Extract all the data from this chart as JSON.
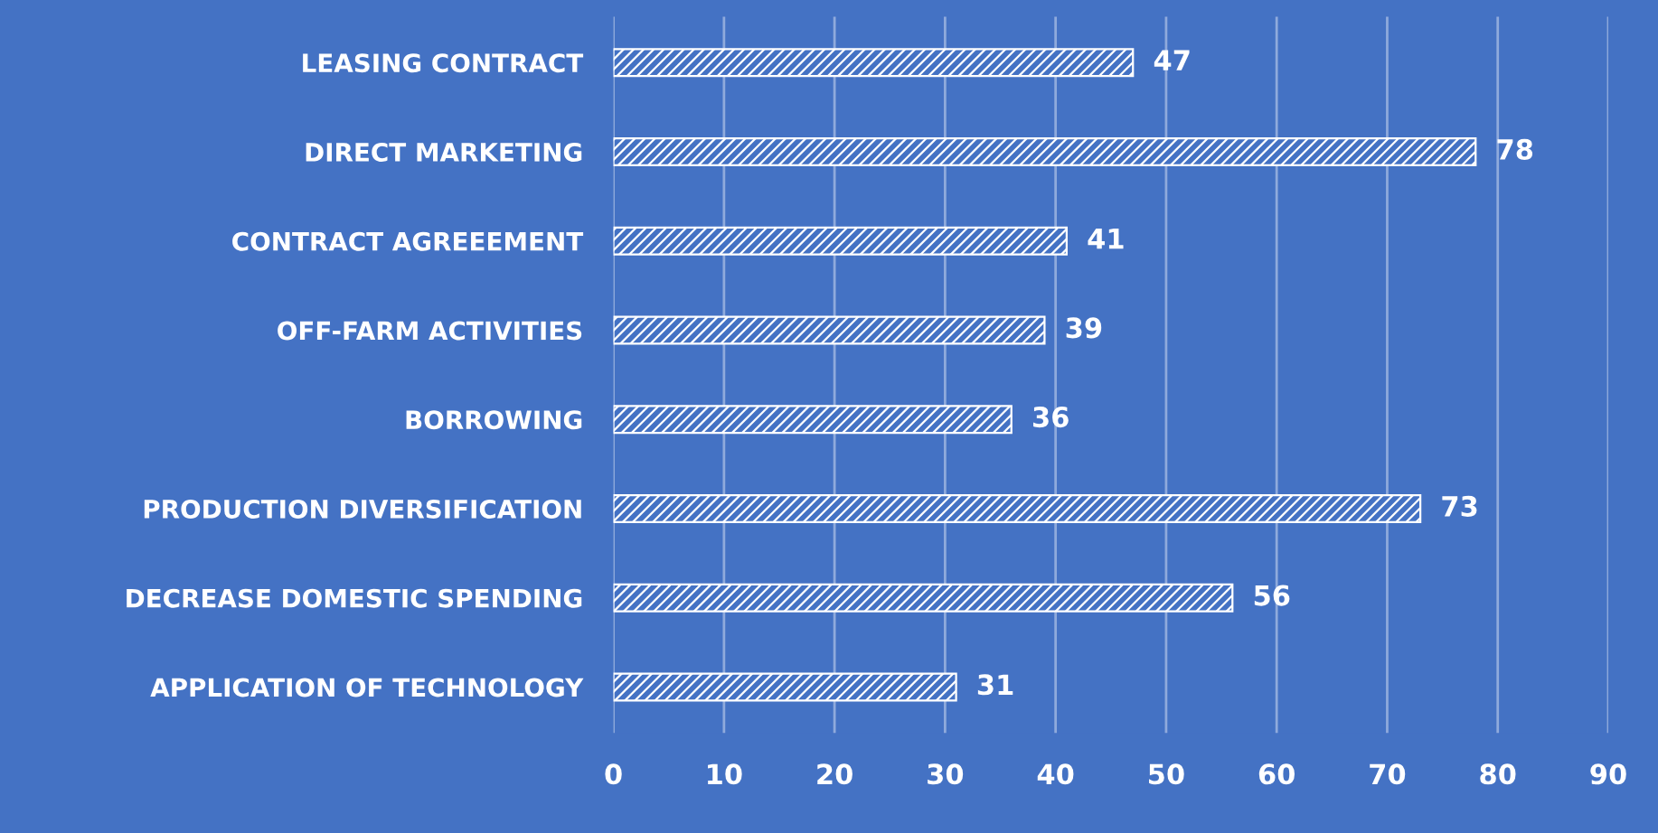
{
  "chart_data": {
    "type": "bar",
    "orientation": "horizontal",
    "categories": [
      "LEASING CONTRACT",
      "DIRECT MARKETING",
      "CONTRACT AGREEEMENT",
      "OFF-FARM ACTIVITIES",
      "BORROWING",
      "PRODUCTION DIVERSIFICATION",
      "DECREASE DOMESTIC SPENDING",
      "APPLICATION OF TECHNOLOGY"
    ],
    "values": [
      47,
      78,
      41,
      39,
      36,
      73,
      56,
      31
    ],
    "color": "#ffffff",
    "data_labels": true,
    "xlim": [
      0,
      90
    ],
    "xticks": [
      0,
      10,
      20,
      30,
      40,
      50,
      60,
      70,
      80,
      90
    ],
    "grid": "x",
    "legend": false
  }
}
